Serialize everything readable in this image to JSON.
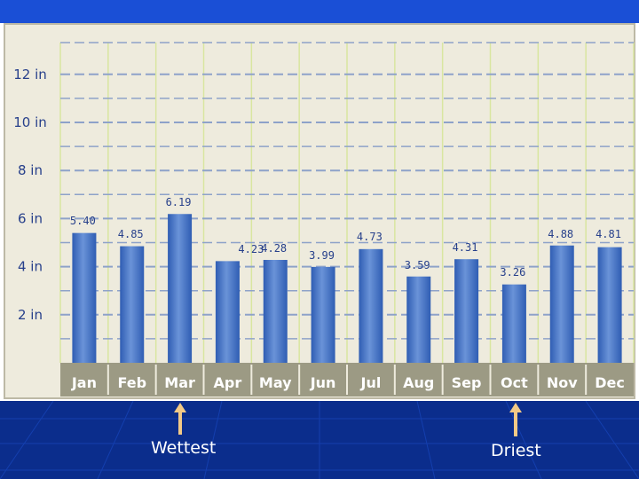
{
  "chart_data": {
    "type": "bar",
    "categories": [
      "Jan",
      "Feb",
      "Mar",
      "Apr",
      "May",
      "Jun",
      "Jul",
      "Aug",
      "Sep",
      "Oct",
      "Nov",
      "Dec"
    ],
    "values": [
      5.4,
      4.85,
      6.19,
      4.23,
      4.28,
      3.99,
      4.73,
      3.59,
      4.31,
      3.26,
      4.88,
      4.81
    ],
    "value_labels": [
      "5.40",
      "4.85",
      "6.19",
      "4.23",
      "4.28",
      "3.99",
      "4.73",
      "3.59",
      "4.31",
      "3.26",
      "4.88",
      "4.81"
    ],
    "y_ticks": [
      {
        "value": 2,
        "label": "2 in"
      },
      {
        "value": 4,
        "label": "4 in"
      },
      {
        "value": 6,
        "label": "6 in"
      },
      {
        "value": 8,
        "label": "8 in"
      },
      {
        "value": 10,
        "label": "10 in"
      },
      {
        "value": 12,
        "label": "12 in"
      }
    ],
    "ylim": [
      0,
      13
    ],
    "grid": true,
    "colors": {
      "bar": "#2f5db3",
      "bar_highlight": "#6a93d8",
      "plot_bg": "#eeebdd",
      "grid_dash": "#8ea2c9",
      "grid_vertical": "#d9e6a0",
      "axis_strip": "#9c9a84",
      "top_bar": "#1a4fd6",
      "bottom_band": "#0b2d8c",
      "arrow": "#f2c986"
    }
  },
  "annotations": {
    "wettest": {
      "label": "Wettest",
      "month": "Mar"
    },
    "driest": {
      "label": "Driest",
      "month": "Oct"
    }
  }
}
